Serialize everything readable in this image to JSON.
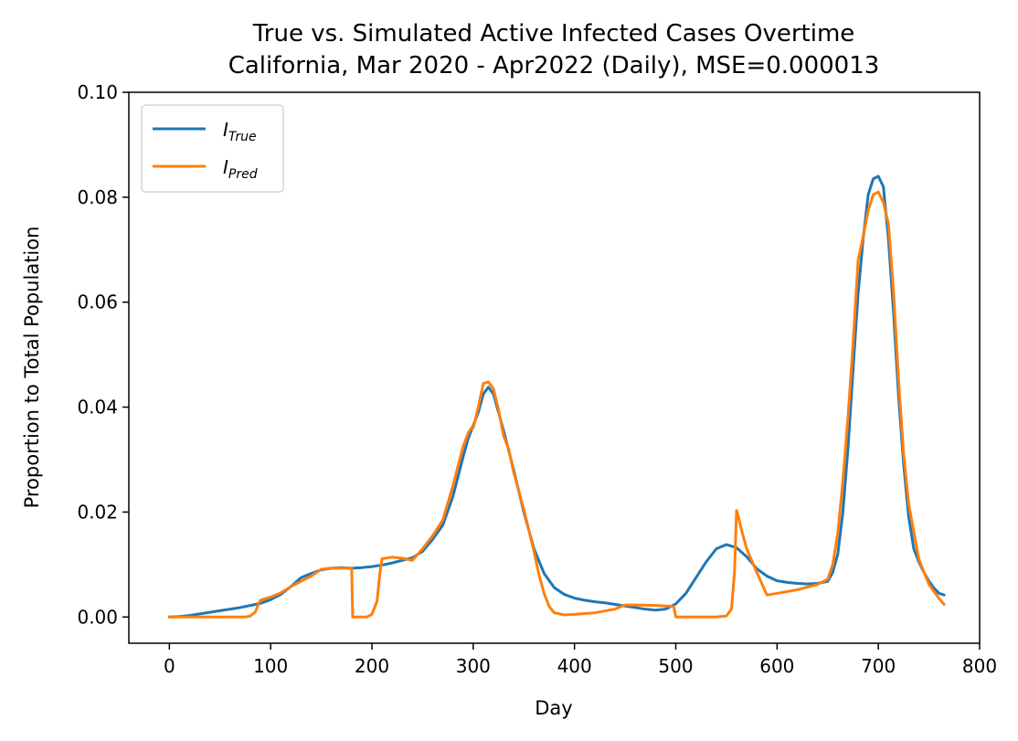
{
  "chart_data": {
    "type": "line",
    "title": "True vs. Simulated Active Infected Cases Overtime",
    "subtitle": "California, Mar 2020 - Apr2022 (Daily), MSE=0.000013",
    "xlabel": "Day",
    "ylabel": "Proportion to Total Population",
    "xlim": [
      -40,
      800
    ],
    "ylim": [
      -0.005,
      0.1
    ],
    "xticks": [
      0,
      100,
      200,
      300,
      400,
      500,
      600,
      700,
      800
    ],
    "xtick_labels": [
      "0",
      "100",
      "200",
      "300",
      "400",
      "500",
      "600",
      "700",
      "800"
    ],
    "yticks": [
      0.0,
      0.02,
      0.04,
      0.06,
      0.08,
      0.1
    ],
    "ytick_labels": [
      "0.00",
      "0.02",
      "0.04",
      "0.06",
      "0.08",
      "0.10"
    ],
    "grid": false,
    "legend_position": "top-left",
    "series": [
      {
        "name": "I_True",
        "legend_main": "I",
        "legend_sub": "True",
        "color": "#1f77b4",
        "x": [
          0,
          10,
          20,
          30,
          40,
          50,
          60,
          70,
          80,
          90,
          100,
          110,
          120,
          130,
          140,
          150,
          160,
          170,
          180,
          190,
          200,
          210,
          220,
          230,
          240,
          250,
          260,
          270,
          280,
          290,
          295,
          300,
          305,
          310,
          315,
          320,
          325,
          330,
          340,
          350,
          360,
          370,
          380,
          390,
          400,
          410,
          420,
          430,
          440,
          450,
          460,
          470,
          480,
          490,
          500,
          510,
          520,
          530,
          540,
          550,
          560,
          570,
          580,
          590,
          600,
          610,
          620,
          630,
          640,
          650,
          655,
          660,
          665,
          670,
          675,
          680,
          685,
          690,
          695,
          700,
          705,
          710,
          715,
          720,
          725,
          730,
          735,
          740,
          745,
          750,
          755,
          760,
          765
        ],
        "y": [
          0.0,
          0.0001,
          0.0003,
          0.0006,
          0.0009,
          0.0012,
          0.0015,
          0.0018,
          0.0022,
          0.0026,
          0.0033,
          0.0043,
          0.0058,
          0.0075,
          0.0083,
          0.009,
          0.0093,
          0.0094,
          0.0093,
          0.0094,
          0.0096,
          0.0099,
          0.0103,
          0.0108,
          0.0113,
          0.0125,
          0.0148,
          0.0175,
          0.023,
          0.0305,
          0.034,
          0.0365,
          0.039,
          0.0425,
          0.0438,
          0.0425,
          0.039,
          0.0355,
          0.028,
          0.02,
          0.013,
          0.0083,
          0.0056,
          0.0043,
          0.0036,
          0.0032,
          0.0029,
          0.0027,
          0.0024,
          0.0021,
          0.0018,
          0.0015,
          0.0013,
          0.0015,
          0.0025,
          0.0045,
          0.0075,
          0.0105,
          0.013,
          0.0138,
          0.0132,
          0.0115,
          0.0092,
          0.0078,
          0.0069,
          0.0066,
          0.0064,
          0.0063,
          0.0064,
          0.0068,
          0.0085,
          0.012,
          0.02,
          0.032,
          0.047,
          0.0615,
          0.072,
          0.0805,
          0.0835,
          0.084,
          0.082,
          0.072,
          0.058,
          0.042,
          0.029,
          0.019,
          0.013,
          0.0105,
          0.0085,
          0.0068,
          0.0055,
          0.0045,
          0.0042
        ]
      },
      {
        "name": "I_Pred",
        "legend_main": "I",
        "legend_sub": "Pred",
        "color": "#ff7f0e",
        "x": [
          0,
          20,
          40,
          60,
          75,
          80,
          85,
          88,
          90,
          100,
          110,
          120,
          130,
          140,
          150,
          160,
          170,
          178,
          180,
          181,
          190,
          195,
          200,
          205,
          208,
          210,
          220,
          230,
          235,
          240,
          250,
          260,
          270,
          280,
          290,
          295,
          298,
          300,
          305,
          310,
          315,
          320,
          325,
          330,
          335,
          340,
          350,
          360,
          365,
          370,
          375,
          380,
          390,
          400,
          420,
          440,
          450,
          460,
          480,
          490,
          498,
          500,
          501,
          520,
          540,
          550,
          555,
          558,
          560,
          562,
          565,
          570,
          580,
          590,
          600,
          620,
          640,
          650,
          655,
          660,
          665,
          670,
          675,
          680,
          685,
          690,
          695,
          700,
          705,
          708,
          710,
          715,
          720,
          725,
          730,
          740,
          750,
          760,
          765
        ],
        "y": [
          0.0,
          0.0,
          0.0,
          0.0,
          0.0,
          0.0002,
          0.001,
          0.0025,
          0.0032,
          0.0038,
          0.0046,
          0.0058,
          0.0068,
          0.0078,
          0.0091,
          0.0093,
          0.0093,
          0.0093,
          0.0093,
          0.0,
          0.0,
          0.0,
          0.0005,
          0.003,
          0.0085,
          0.0111,
          0.0114,
          0.0112,
          0.011,
          0.0108,
          0.013,
          0.0155,
          0.0185,
          0.025,
          0.0325,
          0.035,
          0.036,
          0.036,
          0.04,
          0.0445,
          0.0448,
          0.0435,
          0.0395,
          0.0345,
          0.032,
          0.0275,
          0.0205,
          0.0125,
          0.008,
          0.0045,
          0.002,
          0.0008,
          0.0004,
          0.0005,
          0.0008,
          0.0015,
          0.0023,
          0.0023,
          0.0022,
          0.0021,
          0.002,
          0.0,
          0.0,
          0.0,
          0.0,
          0.0002,
          0.0015,
          0.0085,
          0.0203,
          0.019,
          0.0165,
          0.013,
          0.0085,
          0.0042,
          0.0045,
          0.0052,
          0.0062,
          0.0072,
          0.01,
          0.016,
          0.026,
          0.038,
          0.052,
          0.068,
          0.0725,
          0.0775,
          0.0805,
          0.081,
          0.079,
          0.0765,
          0.075,
          0.062,
          0.045,
          0.031,
          0.0215,
          0.011,
          0.0062,
          0.0035,
          0.0024
        ]
      }
    ]
  }
}
